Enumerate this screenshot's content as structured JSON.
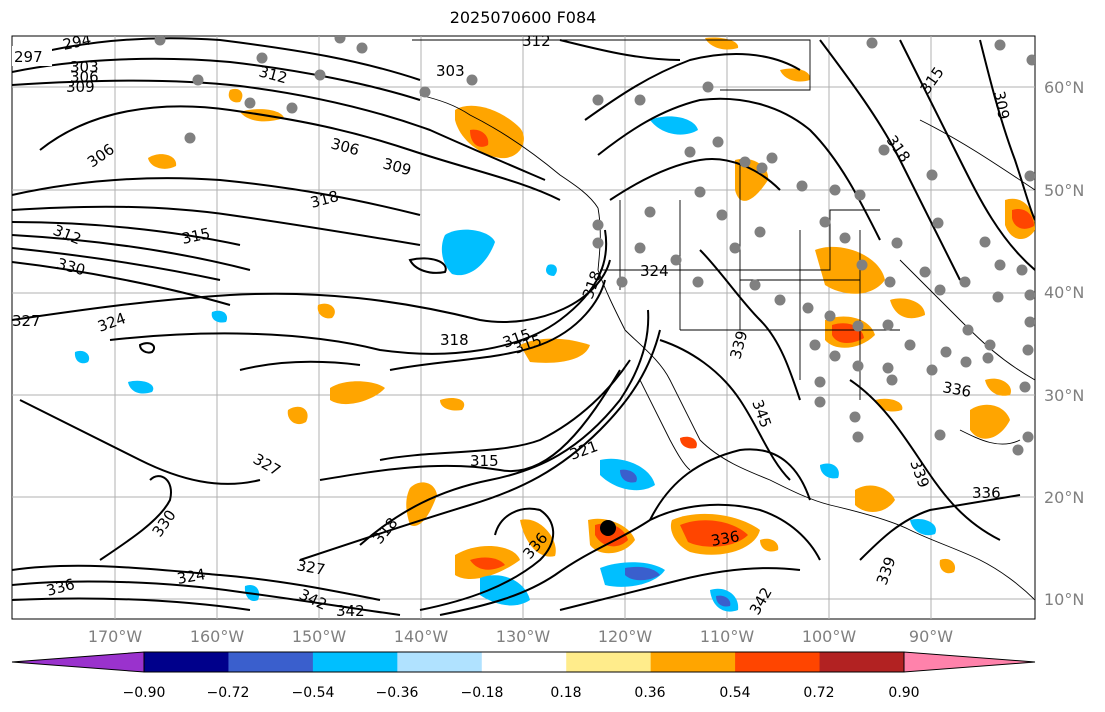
{
  "title": "2025070600 F084",
  "latitude_labels": [
    "60°N",
    "50°N",
    "40°N",
    "30°N",
    "20°N",
    "10°N"
  ],
  "longitude_labels": [
    "170°W",
    "160°W",
    "150°W",
    "140°W",
    "130°W",
    "120°W",
    "110°W",
    "100°W",
    "90°W"
  ],
  "contour_labels": [
    "297",
    "294",
    "303",
    "306",
    "309",
    "312",
    "312",
    "303",
    "306",
    "309",
    "315",
    "318",
    "306",
    "312",
    "315",
    "318",
    "330",
    "327",
    "324",
    "318",
    "315",
    "324",
    "321",
    "315",
    "327",
    "318",
    "330",
    "336",
    "324",
    "327",
    "342",
    "342",
    "336",
    "339",
    "336",
    "339",
    "345",
    "339",
    "315",
    "318",
    "309",
    "336",
    "336",
    "342"
  ],
  "colorbar": {
    "tick_labels": [
      "−0.90",
      "−0.72",
      "−0.54",
      "−0.36",
      "−0.18",
      "0.18",
      "0.36",
      "0.54",
      "0.72",
      "0.90"
    ],
    "colors": [
      "#9a32cd",
      "#00008b",
      "#3a5fcd",
      "#00bfff",
      "#b0e2ff",
      "#ffffff",
      "#ffec8b",
      "#ffa500",
      "#ff4500",
      "#b22222",
      "#ff82ab"
    ]
  }
}
